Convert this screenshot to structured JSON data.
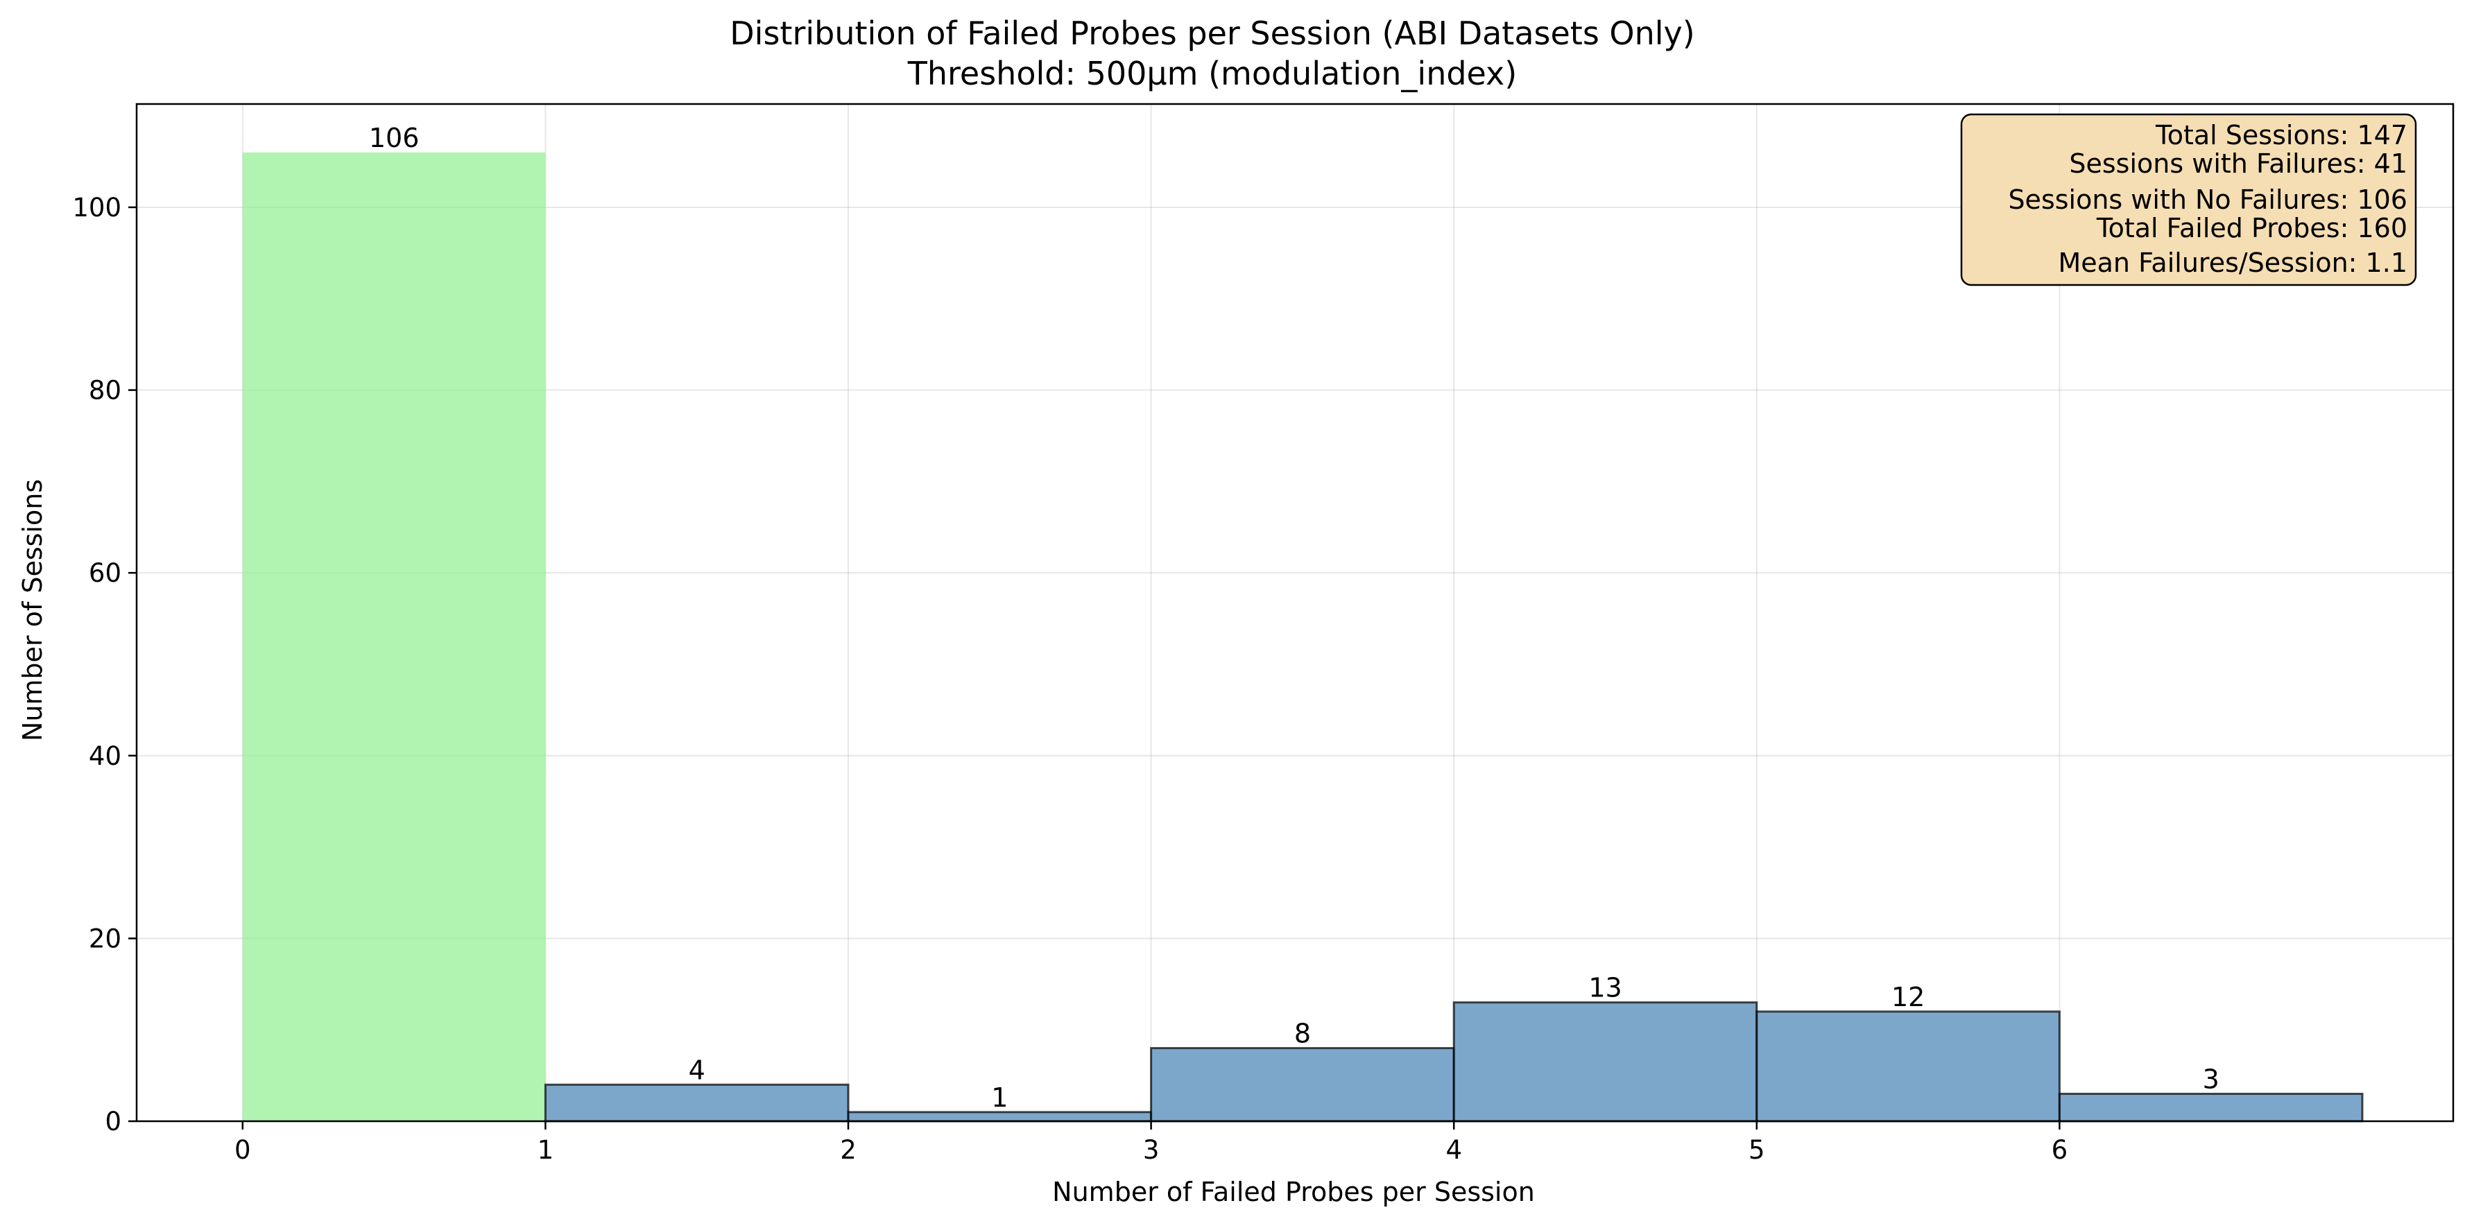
{
  "chart_data": {
    "type": "bar",
    "title": "Distribution of Failed Probes per Session (ABI Datasets Only)",
    "subtitle": "Threshold: 500µm (modulation_index)",
    "xlabel": "Number of Failed Probes per Session",
    "ylabel": "Number of Sessions",
    "xlim": [
      -0.35,
      7.3
    ],
    "ylim": [
      0,
      111.3
    ],
    "xticks": [
      0,
      1,
      2,
      3,
      4,
      5,
      6
    ],
    "xtick_labels": [
      "0",
      "1",
      "2",
      "3",
      "4",
      "5",
      "6"
    ],
    "yticks": [
      0,
      20,
      40,
      60,
      80,
      100
    ],
    "ytick_labels": [
      "0",
      "20",
      "40",
      "60",
      "80",
      "100"
    ],
    "grid": true,
    "bins": [
      {
        "x0": 0,
        "x1": 1,
        "value": 106,
        "label": "106",
        "color": "#90EE90",
        "edge": false
      },
      {
        "x0": 1,
        "x1": 2,
        "value": 4,
        "label": "4",
        "color": "#4682B4",
        "edge": true
      },
      {
        "x0": 2,
        "x1": 3,
        "value": 1,
        "label": "1",
        "color": "#4682B4",
        "edge": true
      },
      {
        "x0": 3,
        "x1": 4,
        "value": 8,
        "label": "8",
        "color": "#4682B4",
        "edge": true
      },
      {
        "x0": 4,
        "x1": 5,
        "value": 13,
        "label": "13",
        "color": "#4682B4",
        "edge": true
      },
      {
        "x0": 5,
        "x1": 6,
        "value": 12,
        "label": "12",
        "color": "#4682B4",
        "edge": true
      },
      {
        "x0": 6,
        "x1": 7,
        "value": 3,
        "label": "3",
        "color": "#4682B4",
        "edge": true
      }
    ],
    "stats_box": {
      "placement": "top-right",
      "background": "#F5DEB3",
      "lines": [
        "Total Sessions: 147",
        "Sessions with Failures: 41",
        "Sessions with No Failures: 106",
        "Total Failed Probes: 160",
        "Mean Failures/Session: 1.1"
      ]
    }
  }
}
